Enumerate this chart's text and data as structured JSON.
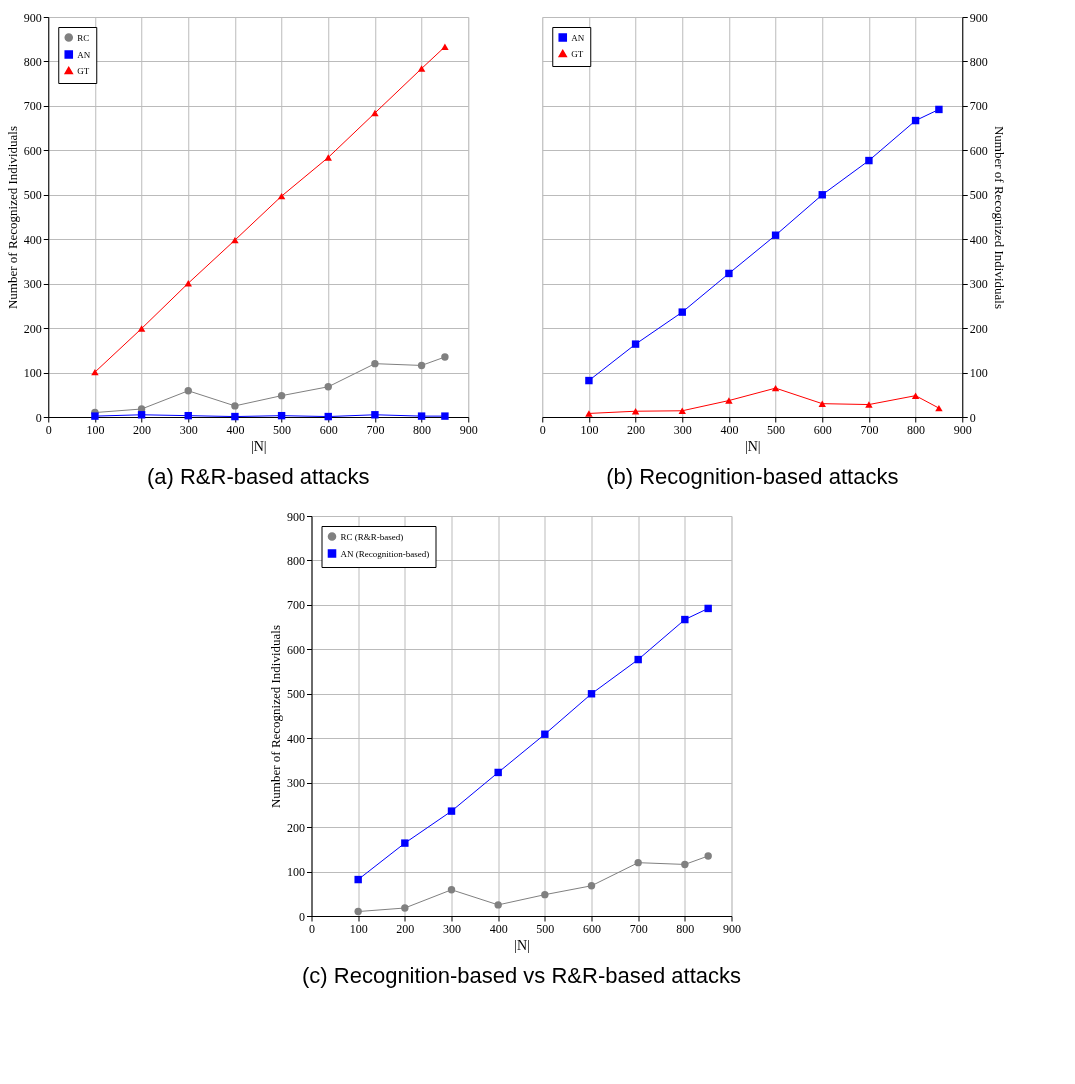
{
  "chart_data": [
    {
      "type": "line",
      "title": "(a) R&R-based attacks",
      "xlabel": "|N|",
      "ylabel": "Number of Recognized Individuals",
      "x": [
        100,
        200,
        300,
        400,
        500,
        600,
        700,
        800,
        850
      ],
      "xlim": [
        0,
        900
      ],
      "xticks": [
        0,
        100,
        200,
        300,
        400,
        500,
        600,
        700,
        800,
        900
      ],
      "ylim": [
        0,
        900
      ],
      "yticks": [
        0,
        100,
        200,
        300,
        400,
        500,
        600,
        700,
        800,
        900
      ],
      "grid": true,
      "legend": "top left",
      "series": [
        {
          "name": "RC",
          "color": "#808080",
          "marker": "circle",
          "values": [
            10,
            18,
            59,
            25,
            48,
            68,
            120,
            116,
            135
          ]
        },
        {
          "name": "AN",
          "color": "#0000ff",
          "marker": "square",
          "values": [
            2,
            5,
            3,
            1,
            3,
            1,
            5,
            2,
            2
          ]
        },
        {
          "name": "GT",
          "color": "#ff0000",
          "marker": "triangle",
          "values": [
            101,
            199,
            301,
            398,
            497,
            584,
            684,
            784,
            833
          ]
        }
      ]
    },
    {
      "type": "line",
      "title": "(b) Recognition-based attacks",
      "xlabel": "|N|",
      "y2label": "Number of Recognized Individuals",
      "x": [
        100,
        200,
        300,
        400,
        500,
        600,
        700,
        800,
        850
      ],
      "xlim": [
        0,
        900
      ],
      "xticks": [
        0,
        100,
        200,
        300,
        400,
        500,
        600,
        700,
        800,
        900
      ],
      "y2lim": [
        0,
        900
      ],
      "y2ticks": [
        0,
        100,
        200,
        300,
        400,
        500,
        600,
        700,
        800,
        900
      ],
      "grid": true,
      "legend": "top left",
      "series": [
        {
          "name": "AN",
          "color": "#0000ff",
          "marker": "square",
          "axis": "y2",
          "values": [
            82,
            164,
            236,
            323,
            409,
            500,
            577,
            667,
            692
          ]
        },
        {
          "name": "GT",
          "color": "#ff0000",
          "marker": "triangle",
          "axis": "y2",
          "values": [
            8,
            13,
            14,
            37,
            65,
            30,
            28,
            48,
            20
          ]
        }
      ]
    },
    {
      "type": "line",
      "title": "(c) Recognition-based vs R&R-based attacks",
      "xlabel": "|N|",
      "ylabel": "Number of Recognized Individuals",
      "x": [
        100,
        200,
        300,
        400,
        500,
        600,
        700,
        800,
        850
      ],
      "xlim": [
        0,
        900
      ],
      "xticks": [
        0,
        100,
        200,
        300,
        400,
        500,
        600,
        700,
        800,
        900
      ],
      "ylim": [
        0,
        900
      ],
      "yticks": [
        0,
        100,
        200,
        300,
        400,
        500,
        600,
        700,
        800,
        900
      ],
      "grid": true,
      "legend": "top left",
      "series": [
        {
          "name": "RC (R&R-based)",
          "color": "#808080",
          "marker": "circle",
          "values": [
            10,
            18,
            59,
            25,
            48,
            68,
            120,
            116,
            135
          ]
        },
        {
          "name": "AN (Recognition-based)",
          "color": "#0000ff",
          "marker": "square",
          "values": [
            82,
            164,
            236,
            323,
            409,
            500,
            577,
            667,
            692
          ]
        }
      ]
    }
  ]
}
